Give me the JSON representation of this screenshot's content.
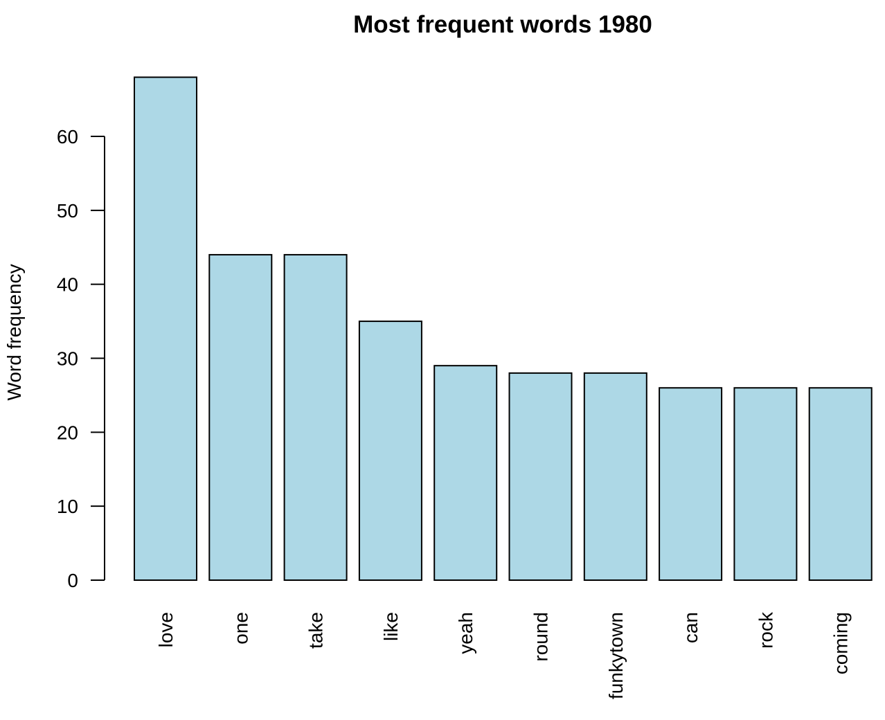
{
  "chart_data": {
    "type": "bar",
    "title": "Most frequent words 1980",
    "xlabel": "",
    "ylabel": "Word frequency",
    "categories": [
      "love",
      "one",
      "take",
      "like",
      "yeah",
      "round",
      "funkytown",
      "can",
      "rock",
      "coming"
    ],
    "values": [
      68,
      44,
      44,
      35,
      29,
      28,
      28,
      26,
      26,
      26
    ],
    "yticks": [
      0,
      10,
      20,
      30,
      40,
      50,
      60
    ],
    "ylim": [
      0,
      68
    ],
    "bar_color": "#add8e6",
    "grid": false,
    "legend": "none"
  }
}
